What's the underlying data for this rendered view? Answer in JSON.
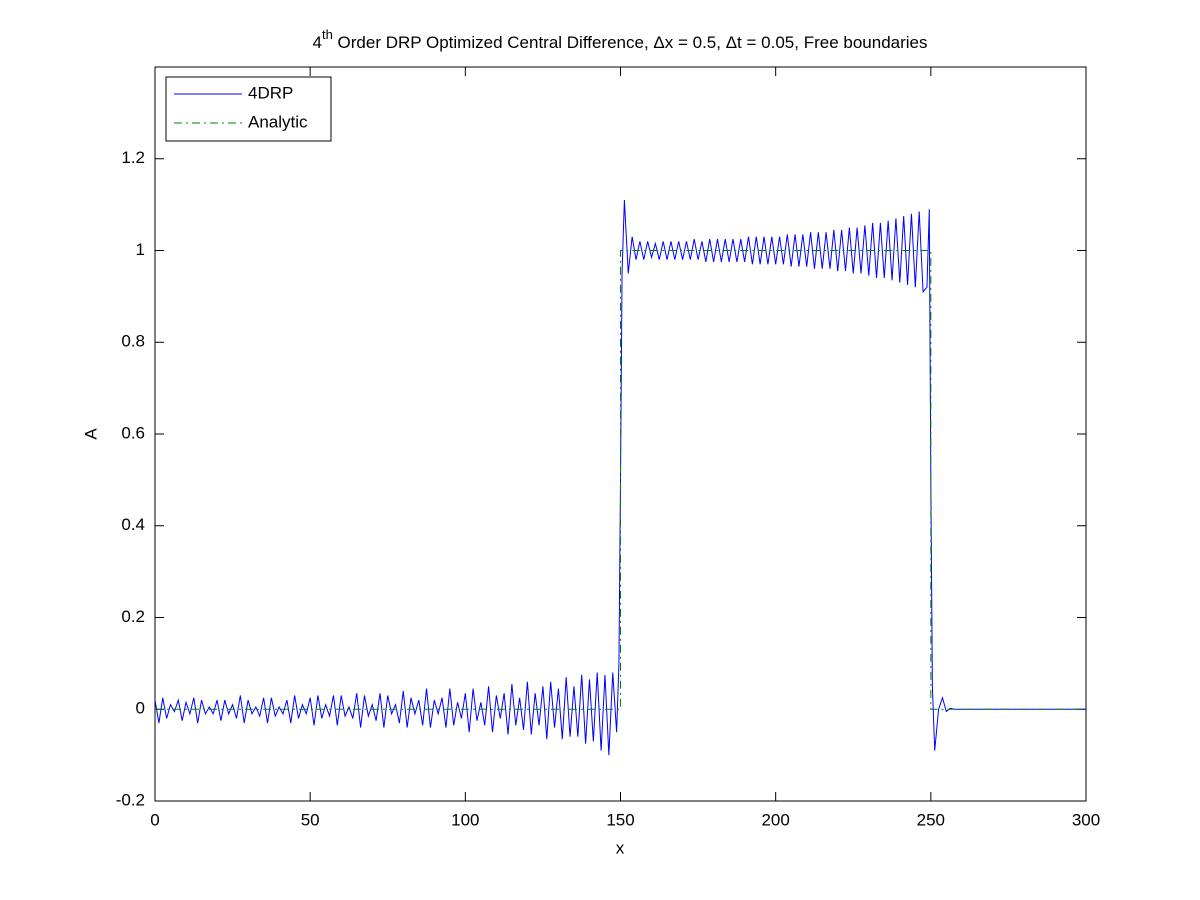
{
  "chart_data": {
    "type": "line",
    "title_parts": [
      "4",
      "th",
      " Order DRP Optimized Central Difference, Δx = 0.5, Δt = 0.05, Free boundaries"
    ],
    "xlabel": "x",
    "ylabel": "A",
    "xlim": [
      0,
      300
    ],
    "xticks": [
      0,
      50,
      100,
      150,
      200,
      250,
      300
    ],
    "ylim": [
      -0.2,
      1.4
    ],
    "yticks": [
      -0.2,
      0,
      0.2,
      0.4,
      0.6,
      0.8,
      1,
      1.2
    ],
    "legend": "upper-left",
    "grid": false,
    "series": [
      {
        "name": "4DRP",
        "color": "#0000ff",
        "style": "solid",
        "x": [
          0,
          1.25,
          2.5,
          3.75,
          5,
          6.25,
          7.5,
          8.75,
          10,
          11.25,
          12.5,
          13.75,
          15,
          16.25,
          17.5,
          18.75,
          20,
          21.25,
          22.5,
          23.75,
          25,
          26.25,
          27.5,
          28.75,
          30,
          31.25,
          32.5,
          33.75,
          35,
          36.25,
          37.5,
          38.75,
          40,
          41.25,
          42.5,
          43.75,
          45,
          46.25,
          47.5,
          48.75,
          50,
          51.25,
          52.5,
          53.75,
          55,
          56.25,
          57.5,
          58.75,
          60,
          61.25,
          62.5,
          63.75,
          65,
          66.25,
          67.5,
          68.75,
          70,
          71.25,
          72.5,
          73.75,
          75,
          76.25,
          77.5,
          78.75,
          80,
          81.25,
          82.5,
          83.75,
          85,
          86.25,
          87.5,
          88.75,
          90,
          91.25,
          92.5,
          93.75,
          95,
          96.25,
          97.5,
          98.75,
          100,
          101.25,
          102.5,
          103.75,
          105,
          106.25,
          107.5,
          108.75,
          110,
          111.25,
          112.5,
          113.75,
          115,
          116.25,
          117.5,
          118.75,
          120,
          121.25,
          122.5,
          123.75,
          125,
          126.25,
          127.5,
          128.75,
          130,
          131.25,
          132.5,
          133.75,
          135,
          136.25,
          137.5,
          138.75,
          140,
          141.25,
          142.5,
          143.75,
          145,
          146.25,
          147.5,
          148.75,
          149.5,
          150,
          150.5,
          151.25,
          152.5,
          153.75,
          155,
          156.25,
          157.5,
          158.75,
          160,
          161.25,
          162.5,
          163.75,
          165,
          166.25,
          167.5,
          168.75,
          170,
          171.25,
          172.5,
          173.75,
          175,
          176.25,
          177.5,
          178.75,
          180,
          181.25,
          182.5,
          183.75,
          185,
          186.25,
          187.5,
          188.75,
          190,
          191.25,
          192.5,
          193.75,
          195,
          196.25,
          197.5,
          198.75,
          200,
          201.25,
          202.5,
          203.75,
          205,
          206.25,
          207.5,
          208.75,
          210,
          211.25,
          212.5,
          213.75,
          215,
          216.25,
          217.5,
          218.75,
          220,
          221.25,
          222.5,
          223.75,
          225,
          226.25,
          227.5,
          228.75,
          230,
          231.25,
          232.5,
          233.75,
          235,
          236.25,
          237.5,
          238.75,
          240,
          241.25,
          242.5,
          243.75,
          245,
          246.25,
          247.5,
          248.75,
          249.5,
          250,
          250.5,
          251.25,
          252.5,
          253.75,
          255,
          256.25,
          257.5,
          300
        ],
        "values": [
          0.02,
          -0.03,
          0.025,
          -0.02,
          0.01,
          -0.005,
          0.02,
          -0.025,
          0.015,
          -0.01,
          0.025,
          -0.03,
          0.02,
          -0.01,
          0.005,
          -0.01,
          0.02,
          -0.025,
          0.02,
          -0.01,
          0.01,
          -0.02,
          0.03,
          -0.03,
          0.02,
          -0.01,
          0.005,
          -0.015,
          0.025,
          -0.03,
          0.025,
          -0.015,
          0.005,
          -0.01,
          0.02,
          -0.03,
          0.03,
          -0.02,
          0.01,
          -0.01,
          0.025,
          -0.035,
          0.03,
          -0.02,
          0.01,
          -0.015,
          0.03,
          -0.035,
          0.03,
          -0.015,
          0.005,
          -0.02,
          0.035,
          -0.04,
          0.03,
          -0.015,
          0.01,
          -0.025,
          0.035,
          -0.04,
          0.03,
          -0.01,
          0.01,
          -0.03,
          0.04,
          -0.04,
          0.025,
          -0.01,
          0.02,
          -0.035,
          0.045,
          -0.04,
          0.02,
          -0.01,
          0.025,
          -0.04,
          0.045,
          -0.035,
          0.015,
          -0.02,
          0.035,
          -0.05,
          0.045,
          -0.025,
          0.015,
          -0.035,
          0.05,
          -0.05,
          0.03,
          -0.02,
          0.035,
          -0.055,
          0.055,
          -0.035,
          0.025,
          -0.045,
          0.06,
          -0.055,
          0.035,
          -0.035,
          0.05,
          -0.065,
          0.06,
          -0.04,
          0.045,
          -0.065,
          0.07,
          -0.06,
          0.05,
          -0.06,
          0.075,
          -0.075,
          0.065,
          -0.07,
          0.08,
          -0.09,
          0.075,
          -0.1,
          0.08,
          -0.05,
          0.1,
          0.5,
          0.95,
          1.11,
          0.95,
          1.03,
          0.98,
          1.02,
          0.98,
          1.02,
          0.985,
          1.015,
          0.98,
          1.02,
          0.98,
          1.02,
          0.98,
          1.02,
          0.98,
          1.02,
          0.98,
          1.025,
          0.98,
          1.02,
          0.975,
          1.025,
          0.975,
          1.025,
          0.975,
          1.025,
          0.975,
          1.025,
          0.975,
          1.025,
          0.975,
          1.03,
          0.97,
          1.03,
          0.97,
          1.03,
          0.97,
          1.03,
          0.97,
          1.03,
          0.97,
          1.035,
          0.965,
          1.035,
          0.965,
          1.035,
          0.965,
          1.04,
          0.96,
          1.04,
          0.96,
          1.04,
          0.96,
          1.045,
          0.955,
          1.045,
          0.955,
          1.05,
          0.95,
          1.05,
          0.95,
          1.055,
          0.945,
          1.06,
          0.94,
          1.06,
          0.94,
          1.065,
          0.935,
          1.07,
          0.93,
          1.075,
          0.925,
          1.08,
          0.92,
          1.085,
          0.91,
          0.92,
          1.09,
          0.5,
          0.05,
          -0.09,
          0,
          0.025,
          -0.005,
          0.002,
          0,
          0
        ]
      },
      {
        "name": "Analytic",
        "color": "#008000",
        "style": "dashdot",
        "x": [
          0,
          150,
          150,
          250,
          250,
          300
        ],
        "values": [
          0,
          0,
          1,
          1,
          0,
          0
        ]
      }
    ]
  }
}
